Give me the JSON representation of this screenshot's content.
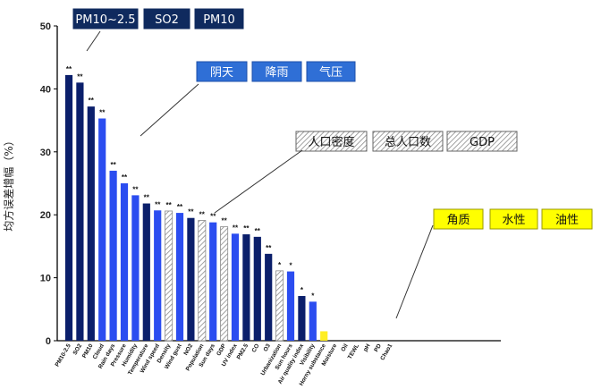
{
  "chart_data": {
    "type": "bar",
    "ylabel": "均方误差增幅（%）",
    "ylim": [
      0,
      50
    ],
    "yticks": [
      0,
      10,
      20,
      30,
      40,
      50
    ],
    "grid": false,
    "categories": [
      "PM10-2.5",
      "SO2",
      "PM10",
      "Cloud",
      "Rain days",
      "Pressure",
      "Humidity",
      "Temperature",
      "Wind speed",
      "Density",
      "Wind gust",
      "NO2",
      "Population",
      "Sun days",
      "GDP",
      "UV index",
      "PM2.5",
      "CO",
      "O3",
      "Urbanization",
      "Sun hours",
      "Air quality index",
      "Visibility",
      "Horny substance",
      "Moisture",
      "Oil",
      "TEWL",
      "pH",
      "PD",
      "Chao1"
    ],
    "values": [
      42.2,
      41.0,
      37.2,
      35.3,
      27.0,
      25.0,
      23.1,
      21.8,
      20.7,
      20.6,
      20.3,
      19.5,
      19.1,
      18.8,
      18.1,
      17.0,
      16.9,
      16.5,
      13.8,
      11.1,
      11.0,
      7.1,
      6.2,
      1.5,
      0,
      0,
      0,
      0,
      0,
      0
    ],
    "styles": [
      "navy",
      "navy",
      "navy",
      "blue",
      "blue",
      "blue",
      "blue",
      "navy",
      "blue",
      "hatch",
      "blue",
      "navy",
      "hatch",
      "blue",
      "hatch",
      "blue",
      "navy",
      "navy",
      "navy",
      "hatch",
      "blue",
      "navy",
      "blue",
      "yellow",
      "none",
      "none",
      "none",
      "none",
      "none",
      "none"
    ],
    "significance": [
      "**",
      "**",
      "**",
      "**",
      "**",
      "**",
      "**",
      "**",
      "**",
      "**",
      "**",
      "**",
      "**",
      "**",
      "**",
      "**",
      "**",
      "**",
      "**",
      "*",
      "*",
      "*",
      "*",
      "",
      "",
      "",
      "",
      "",
      "",
      ""
    ],
    "colors": {
      "navy": "#0b1f6b",
      "blue": "#2b4df0",
      "hatch": "#8a8a8a",
      "yellow": "#ffee22"
    },
    "annotation_groups": [
      {
        "style": "navy",
        "labels": [
          "PM10~2.5",
          "SO2",
          "PM10"
        ]
      },
      {
        "style": "blue",
        "labels": [
          "阴天",
          "降雨",
          "气压"
        ]
      },
      {
        "style": "hatch",
        "labels": [
          "人口密度",
          "总人口数",
          "GDP"
        ]
      },
      {
        "style": "yellow",
        "labels": [
          "角质",
          "水性",
          "油性"
        ]
      }
    ]
  }
}
